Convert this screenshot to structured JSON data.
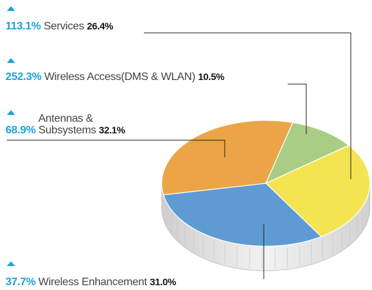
{
  "chart_data": {
    "type": "pie",
    "categories": [
      "Wireless Access(DMS & WLAN)",
      "Services",
      "Wireless Enhancement",
      "Antennas &\nSubsystems"
    ],
    "values": [
      10.5,
      26.4,
      31.0,
      32.1
    ],
    "value_labels": [
      "10.5%",
      "26.4%",
      "31.0%",
      "32.1%"
    ],
    "growth": [
      252.3,
      113.1,
      37.7,
      68.9
    ],
    "growth_labels": [
      "252.3%",
      "113.1%",
      "37.7%",
      "68.9%"
    ],
    "colors": [
      "#a9cd84",
      "#f5e452",
      "#5e9bd3",
      "#eba546"
    ]
  }
}
